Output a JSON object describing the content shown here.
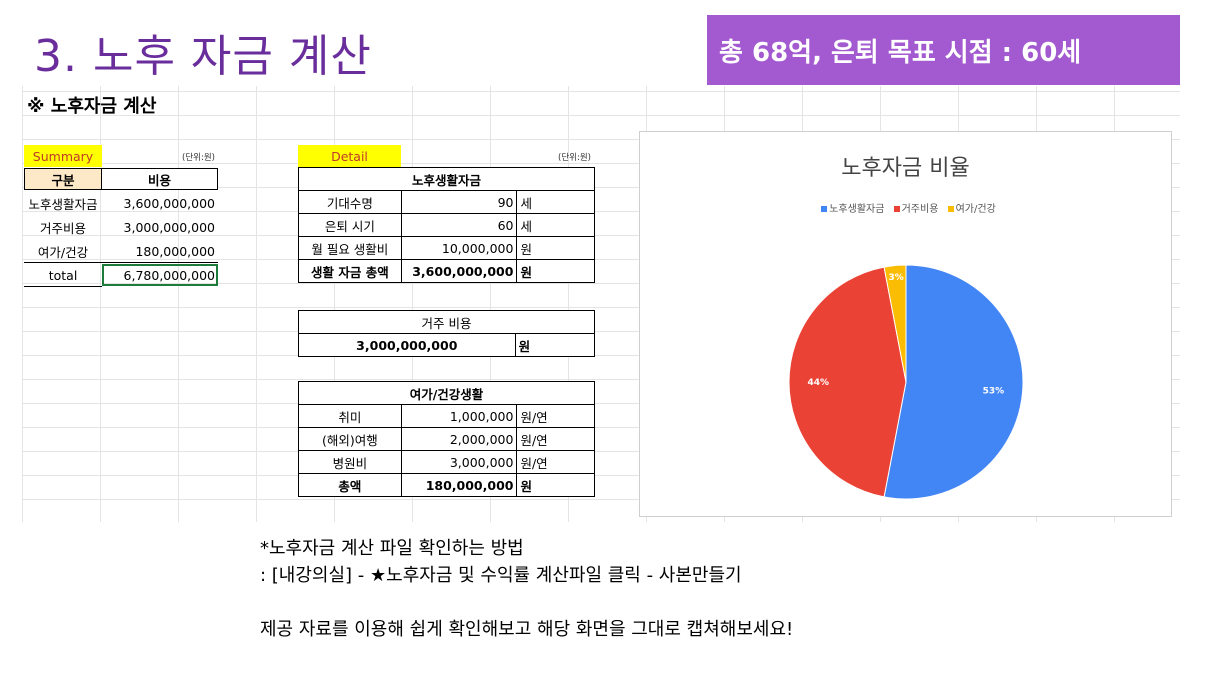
{
  "slide": {
    "title": "3. 노후 자금 계산",
    "banner": "총 68억, 은퇴 목표 시점  : 60세"
  },
  "sheet": {
    "title": "※ 노후자금 계산",
    "summary": {
      "label": "Summary",
      "unit": "(단위:원)",
      "headers": [
        "구분",
        "비용"
      ],
      "rows": [
        {
          "name": "노후생활자금",
          "value": "3,600,000,000"
        },
        {
          "name": "거주비용",
          "value": "3,000,000,000"
        },
        {
          "name": "여가/건강",
          "value": "180,000,000"
        }
      ],
      "total_label": "total",
      "total_value": "6,780,000,000"
    },
    "detail": {
      "label": "Detail",
      "unit": "(단위:원)",
      "living": {
        "header": "노후생활자금",
        "rows": [
          {
            "name": "기대수명",
            "value": "90",
            "unit": "세"
          },
          {
            "name": "은퇴 시기",
            "value": "60",
            "unit": "세"
          },
          {
            "name": "월 필요 생활비",
            "value": "10,000,000",
            "unit": "원"
          }
        ],
        "total": {
          "name": "생활 자금 총액",
          "value": "3,600,000,000",
          "unit": "원"
        }
      },
      "housing": {
        "header": "거주 비용",
        "value": "3,000,000,000",
        "unit": "원"
      },
      "leisure": {
        "header": "여가/건강생활",
        "rows": [
          {
            "name": "취미",
            "value": "1,000,000",
            "unit": "원/연"
          },
          {
            "name": "(해외)여행",
            "value": "2,000,000",
            "unit": "원/연"
          },
          {
            "name": "병원비",
            "value": "3,000,000",
            "unit": "원/연"
          }
        ],
        "total": {
          "name": "총액",
          "value": "180,000,000",
          "unit": "원"
        }
      }
    }
  },
  "chart_data": {
    "type": "pie",
    "title": "노후자금 비율",
    "legend_position": "top",
    "categories": [
      "노후생활자금",
      "거주비용",
      "여가/건강"
    ],
    "values": [
      53,
      44,
      3
    ],
    "labels": [
      "53%",
      "44%",
      "3%"
    ],
    "colors": [
      "#4285f4",
      "#ea4335",
      "#fbbc04"
    ]
  },
  "notes": {
    "line1": "*노후자금 계산 파일 확인하는 방법",
    "line2": ": [내강의실] - ★노후자금 및 수익률 계산파일 클릭 - 사본만들기",
    "line3": "제공 자료를 이용해 쉽게 확인해보고 해당 화면을 그대로 캡쳐해보세요!"
  }
}
